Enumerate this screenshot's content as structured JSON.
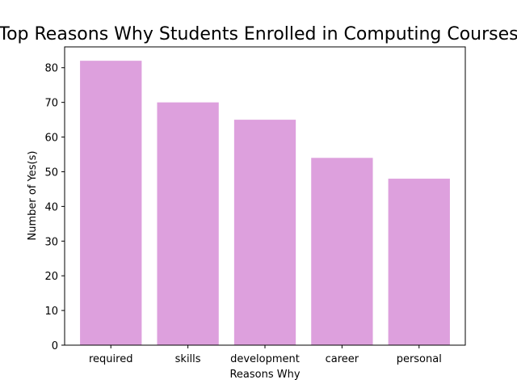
{
  "chart_data": {
    "type": "bar",
    "title": "Top Reasons Why Students Enrolled in Computing Courses",
    "xlabel": "Reasons Why",
    "ylabel": "Number of Yes(s)",
    "categories": [
      "required",
      "skills",
      "development",
      "career",
      "personal"
    ],
    "values": [
      82,
      70,
      65,
      54,
      48
    ],
    "ylim": [
      0,
      86
    ],
    "yticks": [
      0,
      10,
      20,
      30,
      40,
      50,
      60,
      70,
      80
    ],
    "bar_color": "#dda0dd",
    "grid": false,
    "legend": "none"
  }
}
